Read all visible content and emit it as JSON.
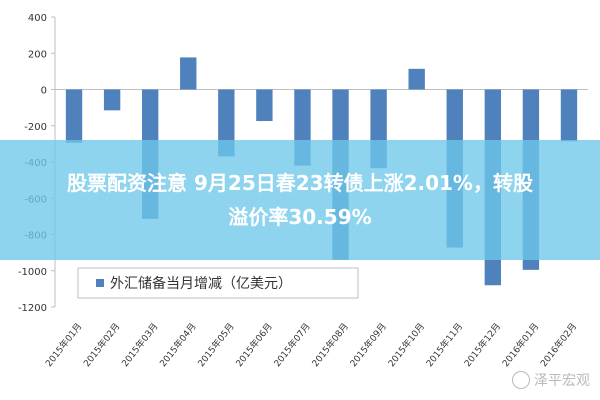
{
  "chart_data": {
    "type": "bar",
    "categories": [
      "2015年01月",
      "2015年02月",
      "2015年03月",
      "2015年04月",
      "2015年05月",
      "2015年06月",
      "2015年07月",
      "2015年08月",
      "2015年09月",
      "2015年10月",
      "2015年11月",
      "2015年12月",
      "2016年01月",
      "2016年02月"
    ],
    "series": [
      {
        "name": "外汇储备当月增减（亿美元）",
        "values": [
          -294,
          -115,
          -714,
          177,
          -369,
          -174,
          -420,
          -940,
          -434,
          114,
          -872,
          -1080,
          -995,
          -286
        ]
      }
    ],
    "ylim": [
      -1200,
      400
    ],
    "yticks": [
      400,
      200,
      0,
      -200,
      -400,
      -600,
      -800,
      -1000,
      -1200
    ],
    "grid": false,
    "legend_position": "bottom-left",
    "bar_color": "#4f81bd"
  },
  "overlay": {
    "line1": "股票配资注意 9月25日春23转债上涨2.01%，转股",
    "line2": "溢价率30.59%"
  },
  "watermark": {
    "text": "泽平宏观"
  }
}
